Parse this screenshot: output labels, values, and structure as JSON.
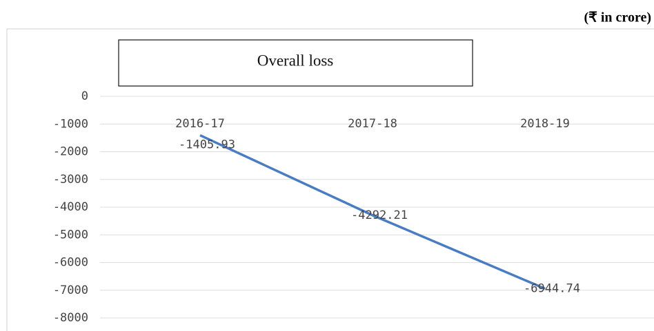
{
  "chart_data": {
    "type": "line",
    "unit_note": "(₹ in crore)",
    "categories": [
      "2016-17",
      "2017-18",
      "2018-19"
    ],
    "series": [
      {
        "name": "Overall loss",
        "color": "#4a7cc2",
        "values": [
          -1405.93,
          -4292.21,
          -6944.74
        ]
      }
    ],
    "ylim": [
      -8000,
      0
    ],
    "yticks": [
      0,
      -1000,
      -2000,
      -3000,
      -4000,
      -5000,
      -6000,
      -7000,
      -8000
    ],
    "grid": true
  }
}
